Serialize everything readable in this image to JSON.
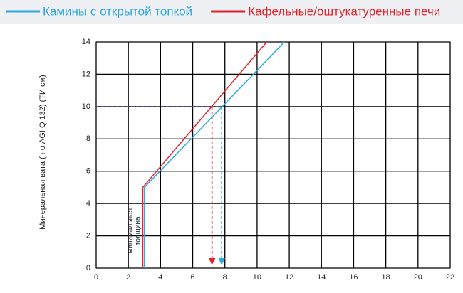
{
  "chart_data": {
    "type": "line",
    "ylabel": "Минеральная вата ( по AGI Q 132) (ТИ см)",
    "annotation": "минимальная толщина",
    "xlim": [
      0,
      22
    ],
    "xticks": [
      0,
      2,
      4,
      6,
      8,
      10,
      12,
      14,
      16,
      18,
      20,
      22
    ],
    "ylim": [
      0,
      14
    ],
    "yticks": [
      0,
      2,
      4,
      6,
      8,
      10,
      12,
      14
    ],
    "grid": true,
    "series": [
      {
        "name": "Камины с открытой топкой",
        "color": "#29a8e0",
        "x": [
          3,
          3,
          11.7
        ],
        "values": [
          0,
          5,
          14
        ]
      },
      {
        "name": "Кафельные/оштукатуренные печи",
        "color": "#e0242b",
        "x": [
          2.9,
          2.9,
          10.6
        ],
        "values": [
          0,
          5,
          14
        ]
      }
    ],
    "markers": [
      {
        "x": 7.2,
        "y": 10,
        "color": "#e0242b"
      },
      {
        "x": 7.8,
        "y": 10,
        "color": "#29a8e0"
      }
    ]
  }
}
